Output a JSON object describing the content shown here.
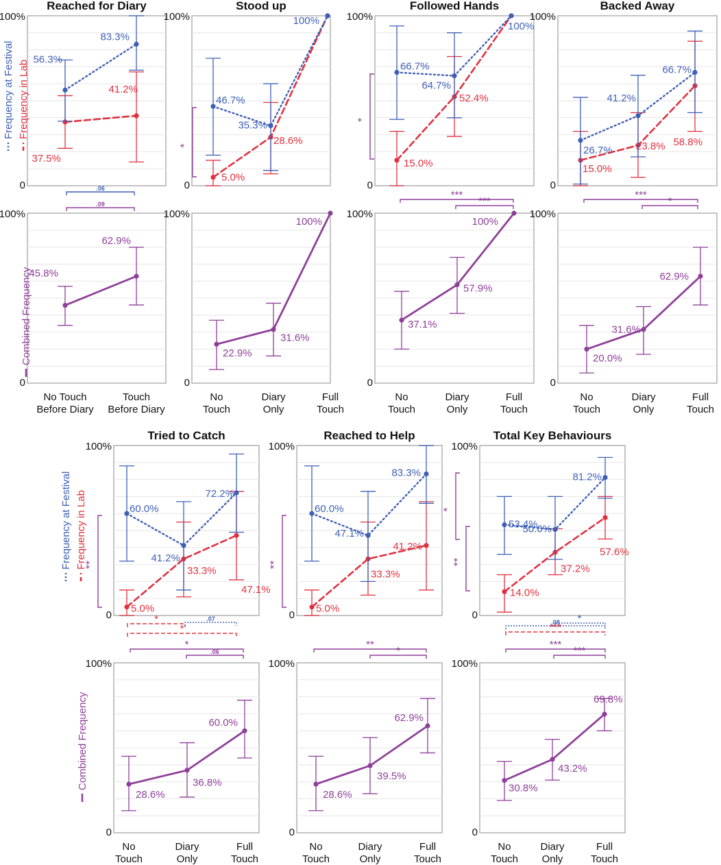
{
  "colors": {
    "festival": "#3d5fb5",
    "lab": "#e0303f",
    "combined": "#8e3f98",
    "frame": "#b0b0b0",
    "grid": "#e6e6e6",
    "text": "#111111"
  },
  "legend": {
    "festival": "Frequency at Festival",
    "lab": "Frequency in Lab",
    "combined": "Combined Frequency"
  },
  "axis_labels": {
    "ymax": "100%",
    "ymin": "0"
  },
  "conditions": {
    "two": [
      [
        "No Touch",
        "Before Diary"
      ],
      [
        "Touch",
        "Before Diary"
      ]
    ],
    "three": [
      [
        "No",
        "Touch"
      ],
      [
        "Diary",
        "Only"
      ],
      [
        "Full",
        "Touch"
      ]
    ]
  },
  "chart_data": [
    {
      "type": "line",
      "title": "Reached for Diary",
      "categories": [
        "No Touch Before Diary",
        "Touch Before Diary"
      ],
      "ylim": [
        0,
        100
      ],
      "series": [
        {
          "name": "Frequency at Festival",
          "values": [
            56.3,
            83.3
          ],
          "ci_low": [
            38,
            68
          ],
          "ci_high": [
            74,
            100
          ],
          "labels": [
            "56.3%",
            "83.3%"
          ]
        },
        {
          "name": "Frequency in Lab",
          "values": [
            37.5,
            41.2
          ],
          "ci_low": [
            22,
            14
          ],
          "ci_high": [
            53,
            67
          ],
          "labels": [
            "37.5%",
            "41.2%"
          ]
        }
      ],
      "comparisons": [
        {
          "series": "Frequency at Festival",
          "from": 0,
          "to": 1,
          "label": ".06"
        },
        {
          "series": "Combined Frequency",
          "from": 0,
          "to": 1,
          "label": ".09"
        }
      ]
    },
    {
      "type": "line",
      "title": "Stood up",
      "categories": [
        "No Touch",
        "Diary Only",
        "Full Touch"
      ],
      "ylim": [
        0,
        100
      ],
      "series": [
        {
          "name": "Frequency at Festival",
          "values": [
            46.7,
            35.3,
            100
          ],
          "ci_low": [
            18,
            9,
            100
          ],
          "ci_high": [
            75,
            60,
            100
          ],
          "labels": [
            "46.7%",
            "35.3%",
            "100%"
          ]
        },
        {
          "name": "Frequency in Lab",
          "values": [
            5.0,
            28.6,
            100
          ],
          "ci_low": [
            0,
            7,
            100
          ],
          "ci_high": [
            15,
            49,
            100
          ],
          "labels": [
            "5.0%",
            "28.6%",
            ""
          ]
        }
      ],
      "comparisons": [
        {
          "series": "festival-vs-lab",
          "label": "*"
        }
      ]
    },
    {
      "type": "line",
      "title": "Followed Hands",
      "categories": [
        "No Touch",
        "Diary Only",
        "Full Touch"
      ],
      "ylim": [
        0,
        100
      ],
      "series": [
        {
          "name": "Frequency at Festival",
          "values": [
            66.7,
            64.7,
            100
          ],
          "ci_low": [
            39,
            40,
            100
          ],
          "ci_high": [
            94,
            90,
            100
          ],
          "labels": [
            "66.7%",
            "64.7%",
            "100%"
          ]
        },
        {
          "name": "Frequency in Lab",
          "values": [
            15.0,
            52.4,
            100
          ],
          "ci_low": [
            0,
            29,
            100
          ],
          "ci_high": [
            32,
            76,
            100
          ],
          "labels": [
            "15.0%",
            "52.4%",
            ""
          ]
        }
      ],
      "comparisons": [
        {
          "series": "festival-vs-lab",
          "label": "*"
        },
        {
          "series": "Combined Frequency",
          "from": 0,
          "to": 2,
          "label": "***"
        },
        {
          "series": "Combined Frequency",
          "from": 1,
          "to": 2,
          "label": "***"
        }
      ]
    },
    {
      "type": "line",
      "title": "Backed Away",
      "categories": [
        "No Touch",
        "Diary Only",
        "Full Touch"
      ],
      "ylim": [
        0,
        100
      ],
      "series": [
        {
          "name": "Frequency at Festival",
          "values": [
            26.7,
            41.2,
            66.7
          ],
          "ci_low": [
            1,
            17,
            43
          ],
          "ci_high": [
            52,
            65,
            91
          ],
          "labels": [
            "26.7%",
            "41.2%",
            "66.7%"
          ]
        },
        {
          "name": "Frequency in Lab",
          "values": [
            15.0,
            23.8,
            58.8
          ],
          "ci_low": [
            0,
            5,
            32
          ],
          "ci_high": [
            32,
            43,
            85
          ],
          "labels": [
            "15.0%",
            "23.8%",
            "58.8%"
          ]
        }
      ],
      "comparisons": [
        {
          "series": "Combined Frequency",
          "from": 0,
          "to": 2,
          "label": "***"
        },
        {
          "series": "Combined Frequency",
          "from": 1,
          "to": 2,
          "label": "*"
        }
      ]
    },
    {
      "type": "line",
      "title": "",
      "categories": [
        "No Touch Before Diary",
        "Touch Before Diary"
      ],
      "ylim": [
        0,
        100
      ],
      "series": [
        {
          "name": "Combined Frequency",
          "values": [
            45.8,
            62.9
          ],
          "ci_low": [
            34,
            46
          ],
          "ci_high": [
            57,
            80
          ],
          "labels": [
            "45.8%",
            "62.9%"
          ]
        }
      ]
    },
    {
      "type": "line",
      "title": "",
      "categories": [
        "No Touch",
        "Diary Only",
        "Full Touch"
      ],
      "ylim": [
        0,
        100
      ],
      "series": [
        {
          "name": "Combined Frequency",
          "values": [
            22.9,
            31.6,
            100
          ],
          "ci_low": [
            8,
            16,
            100
          ],
          "ci_high": [
            37,
            47,
            100
          ],
          "labels": [
            "22.9%",
            "31.6%",
            "100%"
          ]
        }
      ]
    },
    {
      "type": "line",
      "title": "",
      "categories": [
        "No Touch",
        "Diary Only",
        "Full Touch"
      ],
      "ylim": [
        0,
        100
      ],
      "series": [
        {
          "name": "Combined Frequency",
          "values": [
            37.1,
            57.9,
            100
          ],
          "ci_low": [
            20,
            41,
            100
          ],
          "ci_high": [
            54,
            74,
            100
          ],
          "labels": [
            "37.1%",
            "57.9%",
            "100%"
          ]
        }
      ]
    },
    {
      "type": "line",
      "title": "",
      "categories": [
        "No Touch",
        "Diary Only",
        "Full Touch"
      ],
      "ylim": [
        0,
        100
      ],
      "series": [
        {
          "name": "Combined Frequency",
          "values": [
            20.0,
            31.6,
            62.9
          ],
          "ci_low": [
            6,
            17,
            46
          ],
          "ci_high": [
            34,
            45,
            80
          ],
          "labels": [
            "20.0%",
            "31.6%",
            "62.9%"
          ]
        }
      ]
    },
    {
      "type": "line",
      "title": "Tried to Catch",
      "categories": [
        "No Touch",
        "Diary Only",
        "Full Touch"
      ],
      "ylim": [
        0,
        100
      ],
      "series": [
        {
          "name": "Frequency at Festival",
          "values": [
            60.0,
            41.2,
            72.2
          ],
          "ci_low": [
            32,
            15,
            49
          ],
          "ci_high": [
            88,
            67,
            95
          ],
          "labels": [
            "60.0%",
            "41.2%",
            "72.2%"
          ]
        },
        {
          "name": "Frequency in Lab",
          "values": [
            5.0,
            33.3,
            47.1
          ],
          "ci_low": [
            0,
            11,
            21
          ],
          "ci_high": [
            15,
            55,
            73
          ],
          "labels": [
            "5.0%",
            "33.3%",
            "47.1%"
          ]
        }
      ],
      "comparisons": [
        {
          "series": "festival-vs-lab",
          "label": "**"
        },
        {
          "series": "Frequency in Lab",
          "from": 0,
          "to": 1,
          "label": "*"
        },
        {
          "series": "Frequency at Festival",
          "from": 1,
          "to": 2,
          "label": ".07"
        },
        {
          "series": "Frequency in Lab",
          "from": 0,
          "to": 2,
          "label": "*"
        },
        {
          "series": "Combined Frequency",
          "from": 0,
          "to": 2,
          "label": "*"
        },
        {
          "series": "Combined Frequency",
          "from": 1,
          "to": 2,
          "label": ".06"
        }
      ]
    },
    {
      "type": "line",
      "title": "Reached to Help",
      "categories": [
        "No Touch",
        "Diary Only",
        "Full Touch"
      ],
      "ylim": [
        0,
        100
      ],
      "series": [
        {
          "name": "Frequency at Festival",
          "values": [
            60.0,
            47.1,
            83.3
          ],
          "ci_low": [
            32,
            20,
            66
          ],
          "ci_high": [
            88,
            73,
            100
          ],
          "labels": [
            "60.0%",
            "47.1%",
            "83.3%"
          ]
        },
        {
          "name": "Frequency in Lab",
          "values": [
            5.0,
            33.3,
            41.2
          ],
          "ci_low": [
            0,
            12,
            15
          ],
          "ci_high": [
            15,
            55,
            67
          ],
          "labels": [
            "5.0%",
            "33.3%",
            "41.2%"
          ]
        }
      ],
      "comparisons": [
        {
          "series": "festival-vs-lab",
          "label": "**"
        },
        {
          "series": "Combined Frequency",
          "from": 0,
          "to": 2,
          "label": "**"
        },
        {
          "series": "Combined Frequency",
          "from": 1,
          "to": 2,
          "label": "*"
        }
      ]
    },
    {
      "type": "line",
      "title": "Total Key Behaviours",
      "categories": [
        "No Touch",
        "Diary Only",
        "Full Touch"
      ],
      "ylim": [
        0,
        100
      ],
      "series": [
        {
          "name": "Frequency at Festival",
          "values": [
            53.4,
            50.6,
            81.2
          ],
          "ci_low": [
            36,
            33,
            69
          ],
          "ci_high": [
            70,
            70,
            93
          ],
          "labels": [
            "53.4%",
            "50.6%",
            "81.2%"
          ]
        },
        {
          "name": "Frequency in Lab",
          "values": [
            14.0,
            37.2,
            57.6
          ],
          "ci_low": [
            2,
            24,
            45
          ],
          "ci_high": [
            24,
            51,
            70
          ],
          "labels": [
            "14.0%",
            "37.2%",
            "57.6%"
          ]
        }
      ],
      "comparisons": [
        {
          "series": "festival-vs-lab",
          "label": "*"
        },
        {
          "series": "festival-vs-lab",
          "label": "**"
        },
        {
          "series": "Frequency at Festival",
          "from": 0,
          "to": 2,
          "label": ".08"
        },
        {
          "series": "Frequency at Festival",
          "from": 1,
          "to": 2,
          "label": "*"
        },
        {
          "series": "Frequency in Lab",
          "from": 0,
          "to": 2,
          "label": "***"
        },
        {
          "series": "Combined Frequency",
          "from": 0,
          "to": 2,
          "label": "***"
        },
        {
          "series": "Combined Frequency",
          "from": 1,
          "to": 2,
          "label": "***"
        }
      ]
    },
    {
      "type": "line",
      "title": "",
      "categories": [
        "No Touch",
        "Diary Only",
        "Full Touch"
      ],
      "ylim": [
        0,
        100
      ],
      "series": [
        {
          "name": "Combined Frequency",
          "values": [
            28.6,
            36.8,
            60.0
          ],
          "ci_low": [
            13,
            21,
            44
          ],
          "ci_high": [
            45,
            53,
            78
          ],
          "labels": [
            "28.6%",
            "36.8%",
            "60.0%"
          ]
        }
      ]
    },
    {
      "type": "line",
      "title": "",
      "categories": [
        "No Touch",
        "Diary Only",
        "Full Touch"
      ],
      "ylim": [
        0,
        100
      ],
      "series": [
        {
          "name": "Combined Frequency",
          "values": [
            28.6,
            39.5,
            62.9
          ],
          "ci_low": [
            13,
            23,
            47
          ],
          "ci_high": [
            45,
            56,
            79
          ],
          "labels": [
            "28.6%",
            "39.5%",
            "62.9%"
          ]
        }
      ]
    },
    {
      "type": "line",
      "title": "",
      "categories": [
        "No Touch",
        "Diary Only",
        "Full Touch"
      ],
      "ylim": [
        0,
        100
      ],
      "series": [
        {
          "name": "Combined Frequency",
          "values": [
            30.8,
            43.2,
            69.8
          ],
          "ci_low": [
            19,
            31,
            60
          ],
          "ci_high": [
            42,
            55,
            79
          ],
          "labels": [
            "30.8%",
            "43.2%",
            "69.8%"
          ]
        }
      ]
    }
  ]
}
